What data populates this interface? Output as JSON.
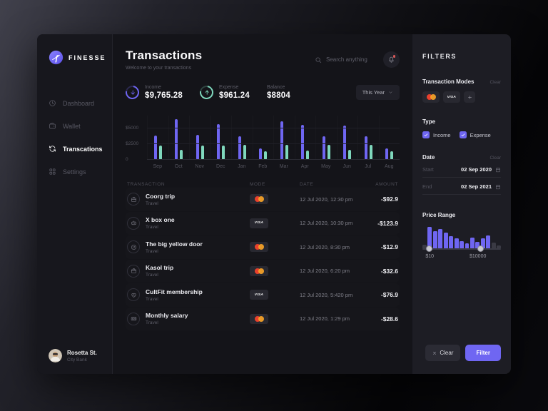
{
  "colors": {
    "accent": "#6f66f2",
    "mint": "#7fd8bd",
    "mc_red": "#e8402d",
    "mc_orange": "#f7a328",
    "badge_bg": "#282830",
    "notification_dot": "#d95858"
  },
  "sidebar": {
    "brand": "FINESSE",
    "items": [
      {
        "id": "dashboard",
        "label": "Dashboard",
        "icon": "dashboard",
        "active": false
      },
      {
        "id": "wallet",
        "label": "Wallet",
        "icon": "wallet",
        "active": false
      },
      {
        "id": "transcations",
        "label": "Transcations",
        "icon": "transactions",
        "active": true
      },
      {
        "id": "settings",
        "label": "Settings",
        "icon": "settings",
        "active": false
      }
    ],
    "profile": {
      "name": "Rosetta St.",
      "subtitle": "City Bank"
    }
  },
  "header": {
    "title": "Transactions",
    "subtitle": "Welcome to your transactions",
    "search_placeholder": "Search anything"
  },
  "stats": {
    "income": {
      "label": "Income",
      "value": "$9,765.28",
      "trend": "down"
    },
    "expense": {
      "label": "Expense",
      "value": "$961.24",
      "trend": "up"
    },
    "balance": {
      "label": "Balance",
      "value": "$8804"
    },
    "period": "This Year"
  },
  "chart_data": {
    "type": "bar",
    "title": "Monthly income vs expense",
    "categories": [
      "Sep",
      "Oct",
      "Nov",
      "Dec",
      "Jan",
      "Feb",
      "Mar",
      "Apr",
      "May",
      "Jun",
      "Jul",
      "Aug"
    ],
    "series": [
      {
        "name": "Income",
        "color": "#6f66f2",
        "values": [
          3800,
          6400,
          3900,
          5700,
          3700,
          1800,
          6100,
          5500,
          3700,
          5400,
          3700,
          1800
        ]
      },
      {
        "name": "Expense",
        "color": "#7fd8bd",
        "values": [
          2300,
          1600,
          2300,
          2300,
          2400,
          1300,
          2400,
          1500,
          2400,
          1600,
          2400,
          1400
        ]
      }
    ],
    "ylim": [
      0,
      7000
    ],
    "yticks": [
      {
        "value": 5000,
        "label": "$5000"
      },
      {
        "value": 2500,
        "label": "$2500"
      },
      {
        "value": 0,
        "label": "0"
      }
    ],
    "grid": true,
    "legend": "none"
  },
  "table": {
    "headers": [
      "TRANSACTION",
      "MODE",
      "DATE",
      "AMOUNT"
    ],
    "rows": [
      {
        "title": "Coorg trip",
        "subtitle": "Travel",
        "icon": "briefcase",
        "mode": "mastercard",
        "date": "12 Jul 2020, 12:30 pm",
        "amount": "-$92.9"
      },
      {
        "title": "X box one",
        "subtitle": "Travel",
        "icon": "gamepad",
        "mode": "visa",
        "date": "12 Jul 2020, 10:30 pm",
        "amount": "-$123.9"
      },
      {
        "title": "The big yellow door",
        "subtitle": "Travel",
        "icon": "smiley",
        "mode": "mastercard",
        "date": "12 Jul 2020, 8:30 pm",
        "amount": "-$12.9"
      },
      {
        "title": "Kasol trip",
        "subtitle": "Travel",
        "icon": "briefcase",
        "mode": "mastercard",
        "date": "12 Jul 2020, 6:20 pm",
        "amount": "-$32.6"
      },
      {
        "title": "CultFit membership",
        "subtitle": "Travel",
        "icon": "heart",
        "mode": "visa",
        "date": "12 Jul 2020, 5:420 pm",
        "amount": "-$76.9"
      },
      {
        "title": "Monthly salary",
        "subtitle": "Travel",
        "icon": "money",
        "mode": "mastercard",
        "date": "12 Jul 2020, 1:29 pm",
        "amount": "-$28.6"
      }
    ]
  },
  "filters": {
    "title": "FILTERS",
    "modes": {
      "label": "Transaction Modes",
      "clear": "Clear"
    },
    "type": {
      "label": "Type",
      "options": [
        {
          "label": "Income",
          "checked": true
        },
        {
          "label": "Expense",
          "checked": true
        }
      ]
    },
    "date": {
      "label": "Date",
      "clear": "Clear",
      "fields": [
        {
          "label": "Start",
          "value": "02 Sep 2020"
        },
        {
          "label": "End",
          "value": "02 Sep 2021"
        }
      ]
    },
    "price_range": {
      "label": "Price Range",
      "min_label": "$10",
      "max_label": "$10000",
      "histogram": [
        {
          "h": 0.15,
          "active": false
        },
        {
          "h": 1,
          "active": true
        },
        {
          "h": 0.8,
          "active": true
        },
        {
          "h": 0.9,
          "active": true
        },
        {
          "h": 0.72,
          "active": true
        },
        {
          "h": 0.58,
          "active": true
        },
        {
          "h": 0.45,
          "active": true
        },
        {
          "h": 0.32,
          "active": true
        },
        {
          "h": 0.22,
          "active": true
        },
        {
          "h": 0.5,
          "active": true
        },
        {
          "h": 0.3,
          "active": true
        },
        {
          "h": 0.45,
          "active": true
        },
        {
          "h": 0.6,
          "active": true
        },
        {
          "h": 0.25,
          "active": false
        },
        {
          "h": 0.12,
          "active": false
        }
      ],
      "handle_positions_pct": [
        8,
        74
      ]
    },
    "actions": {
      "clear": "Clear",
      "filter": "Filter"
    }
  },
  "badges": {
    "visa_label": "VISA"
  }
}
